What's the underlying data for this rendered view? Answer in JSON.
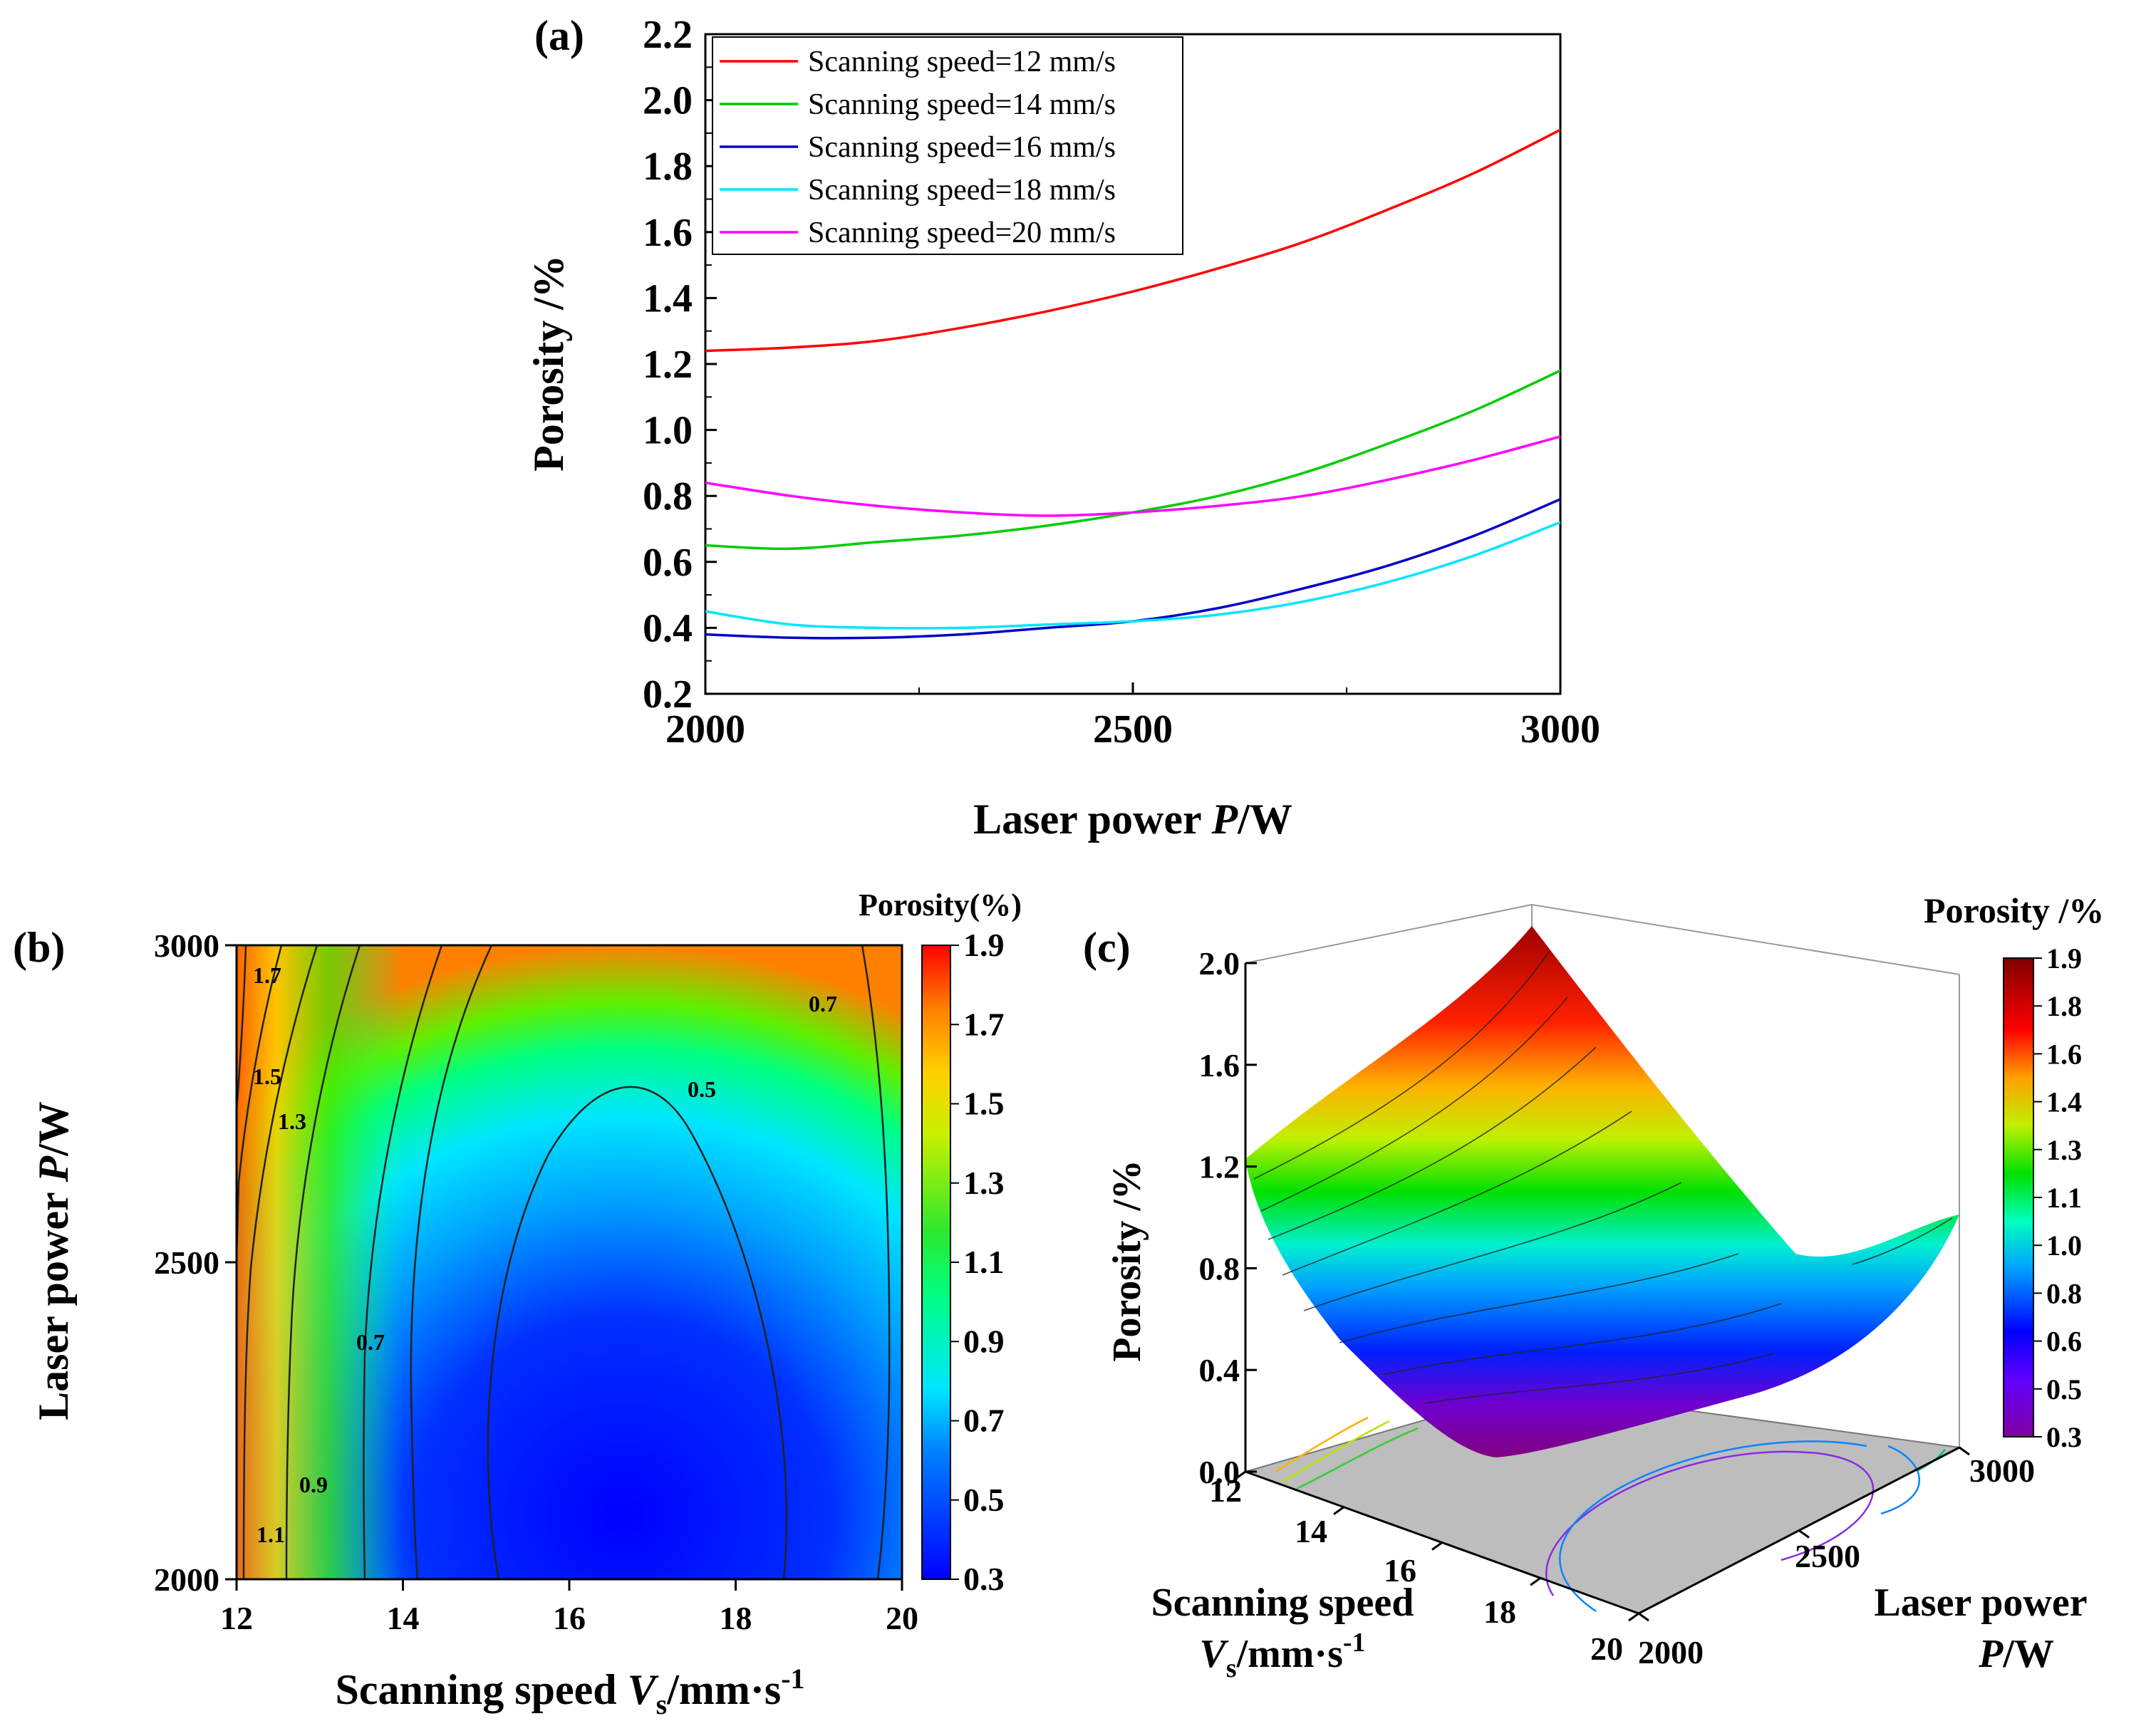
{
  "chart_data": [
    {
      "panel": "(a)",
      "type": "line",
      "xlabel": "Laser power P/W",
      "ylabel": "Porosity /%",
      "xlim": [
        2000,
        3000
      ],
      "ylim": [
        0.2,
        2.2
      ],
      "xticks": [
        "2000",
        "2500",
        "3000"
      ],
      "yticks": [
        "0.2",
        "0.4",
        "0.6",
        "0.8",
        "1.0",
        "1.2",
        "1.4",
        "1.6",
        "1.8",
        "2.0",
        "2.2"
      ],
      "legend_position": "top-left",
      "series": [
        {
          "name": "Scanning speed=12 mm/s",
          "color": "#ff0000",
          "x": [
            2000,
            2100,
            2200,
            2300,
            2400,
            2500,
            2600,
            2700,
            2800,
            2900,
            3000
          ],
          "y": [
            1.24,
            1.25,
            1.27,
            1.31,
            1.36,
            1.42,
            1.49,
            1.57,
            1.67,
            1.78,
            1.91
          ]
        },
        {
          "name": "Scanning speed=14 mm/s",
          "color": "#00cc00",
          "x": [
            2000,
            2100,
            2200,
            2300,
            2400,
            2500,
            2600,
            2700,
            2800,
            2900,
            3000
          ],
          "y": [
            0.65,
            0.64,
            0.66,
            0.68,
            0.71,
            0.75,
            0.8,
            0.87,
            0.96,
            1.06,
            1.18
          ]
        },
        {
          "name": "Scanning speed=16 mm/s",
          "color": "#0000c8",
          "x": [
            2000,
            2100,
            2200,
            2300,
            2400,
            2500,
            2600,
            2700,
            2800,
            2900,
            3000
          ],
          "y": [
            0.38,
            0.37,
            0.37,
            0.38,
            0.4,
            0.42,
            0.46,
            0.52,
            0.59,
            0.68,
            0.79
          ]
        },
        {
          "name": "Scanning speed=18 mm/s",
          "color": "#00e5ff",
          "x": [
            2000,
            2100,
            2200,
            2300,
            2400,
            2500,
            2600,
            2700,
            2800,
            2900,
            3000
          ],
          "y": [
            0.45,
            0.41,
            0.4,
            0.4,
            0.41,
            0.42,
            0.44,
            0.48,
            0.54,
            0.62,
            0.72
          ]
        },
        {
          "name": "Scanning speed=20 mm/s",
          "color": "#ff00ff",
          "x": [
            2000,
            2100,
            2200,
            2300,
            2400,
            2500,
            2600,
            2700,
            2800,
            2900,
            3000
          ],
          "y": [
            0.84,
            0.8,
            0.77,
            0.75,
            0.74,
            0.75,
            0.77,
            0.8,
            0.85,
            0.91,
            0.98
          ]
        }
      ]
    },
    {
      "panel": "(b)",
      "type": "heatmap",
      "xlabel": "Scanning speed Vs/mm·s-1",
      "xlabel_main": "Scanning speed ",
      "xlabel_var": "V",
      "xlabel_sub": "s",
      "xlabel_unit": "/mm·s",
      "xlabel_sup": "-1",
      "ylabel": "Laser power P/W",
      "xlim": [
        12,
        20
      ],
      "ylim": [
        2000,
        3000
      ],
      "xticks": [
        "12",
        "14",
        "16",
        "18",
        "20"
      ],
      "yticks": [
        "2000",
        "2500",
        "3000"
      ],
      "colorbar_title": "Porosity(%)",
      "colorbar_range": [
        0.3,
        1.9
      ],
      "colorbar_ticks": [
        "0.3",
        "0.5",
        "0.7",
        "0.9",
        "1.1",
        "1.3",
        "1.5",
        "1.7",
        "1.9"
      ],
      "contour_labels": [
        "1.7",
        "1.5",
        "1.3",
        "1.1",
        "0.9",
        "0.7",
        "0.5",
        "0.7"
      ]
    },
    {
      "panel": "(c)",
      "type": "surface",
      "xlabel_line1": "Scanning speed",
      "xlabel_line2_var": "V",
      "xlabel_line2_sub": "s",
      "xlabel_line2_unit": "/mm·s",
      "xlabel_line2_sup": "-1",
      "ylabel": "Porosity /%",
      "zlabel_line1": "Laser power",
      "zlabel_line2_var": "P",
      "zlabel_line2_unit": "/W",
      "xticks": [
        "12",
        "14",
        "16",
        "18",
        "20"
      ],
      "power_ticks": [
        "2000",
        "2500",
        "3000"
      ],
      "porosity_ticks": [
        "0.0",
        "0.4",
        "0.8",
        "1.2",
        "1.6",
        "2.0"
      ],
      "colorbar_title": "Porosity /%",
      "colorbar_range": [
        0.3,
        1.9
      ],
      "colorbar_ticks": [
        "0.3",
        "0.5",
        "0.6",
        "0.8",
        "1.0",
        "1.1",
        "1.3",
        "1.4",
        "1.6",
        "1.8",
        "1.9"
      ]
    }
  ]
}
